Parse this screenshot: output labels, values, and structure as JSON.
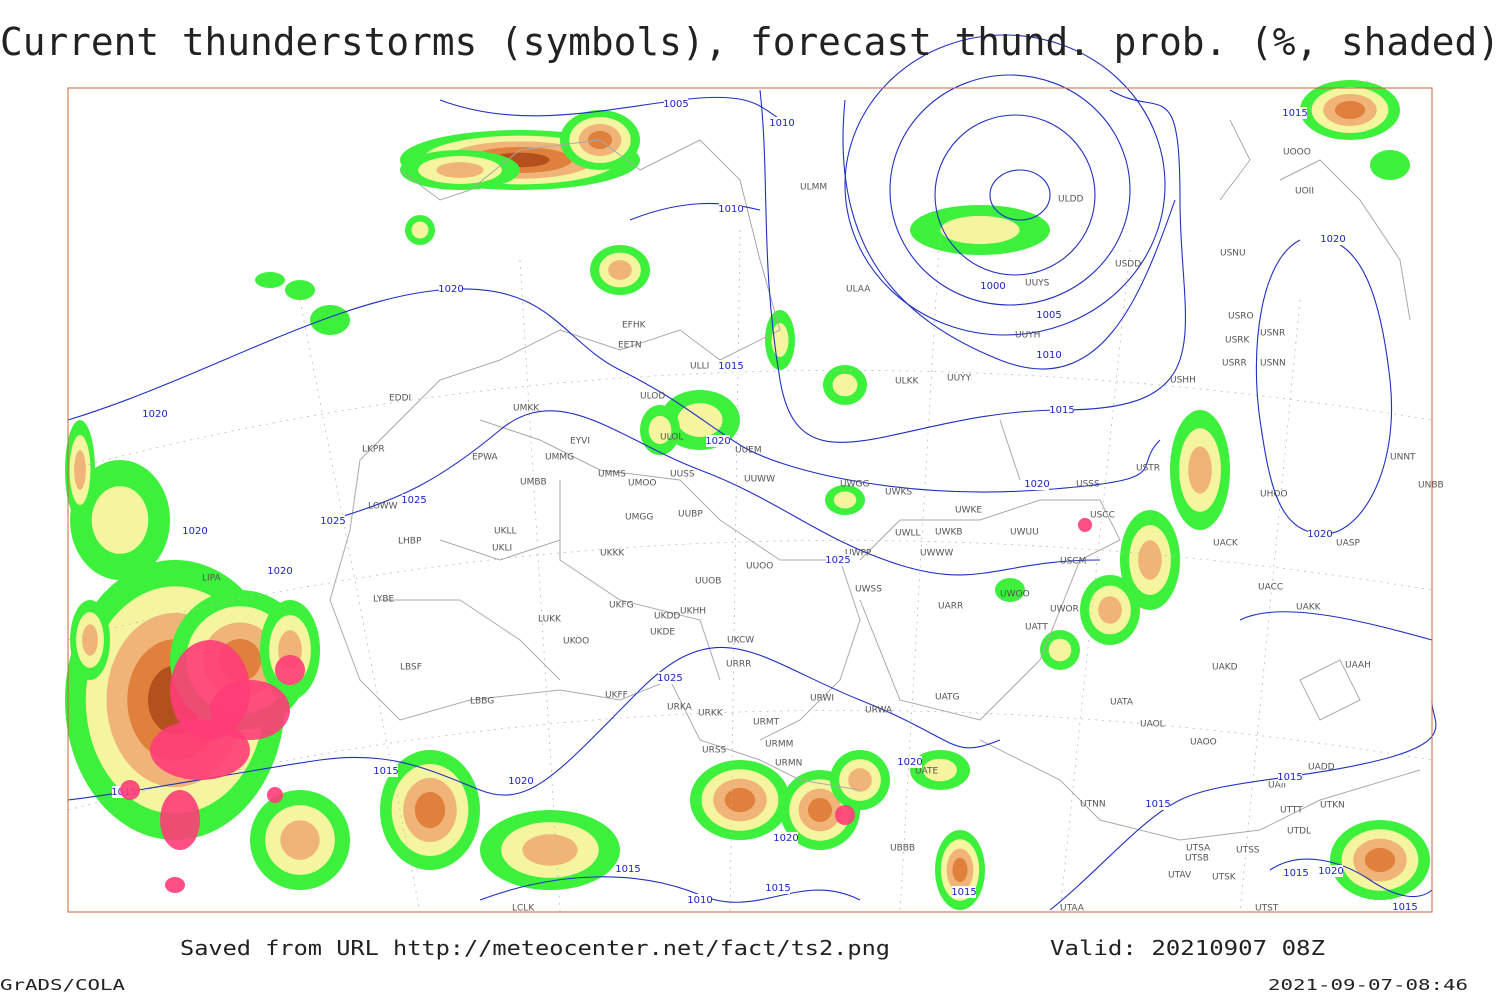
{
  "header": {
    "title": "Current thunderstorms (symbols), forecast thund. prob. (%, shaded)"
  },
  "footer": {
    "source": "Saved from URL http://meteocenter.net/fact/ts2.png",
    "valid": "Valid: 20210907 08Z",
    "software": "GrADS/COLA",
    "timestamp": "2021-09-07-08:46"
  },
  "map": {
    "isobar_labels": [
      1005,
      1010,
      1010,
      1020,
      1015,
      1020,
      1025,
      1025,
      1020,
      1020,
      1020,
      1000,
      1005,
      1010,
      1015,
      1020,
      1025,
      1025,
      1020,
      1020,
      1015,
      1015,
      1015,
      1020,
      1020,
      1020,
      1015,
      1015,
      1015,
      1010,
      1015,
      1015,
      1015,
      1020,
      1015
    ],
    "stations": [
      "ULMM",
      "ULAA",
      "ULDD",
      "UUYS",
      "USDD",
      "USNU",
      "UOII",
      "UOOO",
      "USRO",
      "USRK",
      "USNR",
      "USRR",
      "USNN",
      "UUYH",
      "ULKK",
      "UUYY",
      "USHH",
      "UMKK",
      "ULOD",
      "ULOL",
      "UUEM",
      "EYVI",
      "UMMG",
      "EPWA",
      "UMBB",
      "UMMS",
      "UMOO",
      "UUSS",
      "UUWW",
      "UWGG",
      "UWKS",
      "UWKE",
      "UWKB",
      "UWUU",
      "USSS",
      "USTR",
      "UNNT",
      "UNBB",
      "UHOO",
      "USCC",
      "USCM",
      "UACK",
      "UASP",
      "UACC",
      "UAKK",
      "UAKD",
      "UAAH",
      "UATA",
      "UAOL",
      "UAOO",
      "UATE",
      "UATG",
      "UARR",
      "UWOO",
      "UWOR",
      "UATT",
      "UWWW",
      "UWLL",
      "UWPP",
      "UWSS",
      "URWI",
      "URWA",
      "URRR",
      "UKCW",
      "UUOO",
      "UUOB",
      "UKKK",
      "UKHH",
      "LKPR",
      "LOWW",
      "LHBP",
      "LIPA",
      "LYBE",
      "LBSF",
      "LBBG",
      "LUKK",
      "UKOO",
      "UKDE",
      "UKFG",
      "UKDD",
      "UKFF",
      "URKA",
      "URKK",
      "UKLL",
      "UKLI",
      "UMGG",
      "UUBP",
      "URSS",
      "URMT",
      "URMM",
      "URMN",
      "UBBB",
      "UTNN",
      "UTSA",
      "UTSB",
      "UTSS",
      "UTAV",
      "UTSK",
      "UTST",
      "UTAA",
      "UTDL",
      "UTTT",
      "UTKN",
      "UAII",
      "UADD",
      "LCLK",
      "EDDI",
      "EFHK",
      "EETN",
      "ULLI"
    ]
  }
}
